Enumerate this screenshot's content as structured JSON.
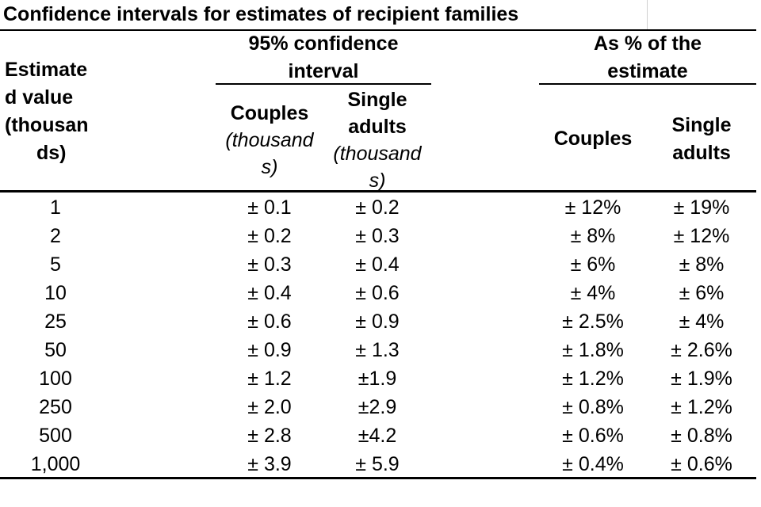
{
  "table": {
    "title": "Confidence intervals for estimates of recipient families",
    "header": {
      "estimate_line1": "Estimate",
      "estimate_line2": "d value",
      "estimate_line3": "(thousan",
      "estimate_line4": "ds)",
      "ci_group_line1": "95% confidence",
      "ci_group_line2": "interval",
      "pct_group_line1": "As % of the",
      "pct_group_line2": "estimate",
      "ci_couples_line1": "Couples",
      "ci_couples_line2": "(thousand",
      "ci_couples_line3": "s)",
      "ci_single_line1": "Single",
      "ci_single_line2": "adults",
      "ci_single_line3": "(thousand",
      "ci_single_line4": "s)",
      "pct_couples": "Couples",
      "pct_single_line1": "Single",
      "pct_single_line2": "adults"
    },
    "rows": [
      {
        "estimate": "1",
        "ci_couples": "± 0.1",
        "ci_single": "± 0.2",
        "pct_couples": "± 12%",
        "pct_single": "± 19%"
      },
      {
        "estimate": "2",
        "ci_couples": "± 0.2",
        "ci_single": "± 0.3",
        "pct_couples": "± 8%",
        "pct_single": "± 12%"
      },
      {
        "estimate": "5",
        "ci_couples": "± 0.3",
        "ci_single": "± 0.4",
        "pct_couples": "± 6%",
        "pct_single": "± 8%"
      },
      {
        "estimate": "10",
        "ci_couples": "± 0.4",
        "ci_single": "± 0.6",
        "pct_couples": "± 4%",
        "pct_single": "± 6%"
      },
      {
        "estimate": "25",
        "ci_couples": "± 0.6",
        "ci_single": "± 0.9",
        "pct_couples": "± 2.5%",
        "pct_single": "± 4%"
      },
      {
        "estimate": "50",
        "ci_couples": "± 0.9",
        "ci_single": "± 1.3",
        "pct_couples": "± 1.8%",
        "pct_single": "± 2.6%"
      },
      {
        "estimate": "100",
        "ci_couples": "± 1.2",
        "ci_single": "±1.9",
        "pct_couples": "± 1.2%",
        "pct_single": "± 1.9%"
      },
      {
        "estimate": "250",
        "ci_couples": "± 2.0",
        "ci_single": "±2.9",
        "pct_couples": "± 0.8%",
        "pct_single": "± 1.2%"
      },
      {
        "estimate": "500",
        "ci_couples": "± 2.8",
        "ci_single": "±4.2",
        "pct_couples": "± 0.6%",
        "pct_single": "± 0.8%"
      },
      {
        "estimate": "1,000",
        "ci_couples": "± 3.9",
        "ci_single": "± 5.9",
        "pct_couples": "± 0.4%",
        "pct_single": "± 0.6%"
      }
    ]
  }
}
